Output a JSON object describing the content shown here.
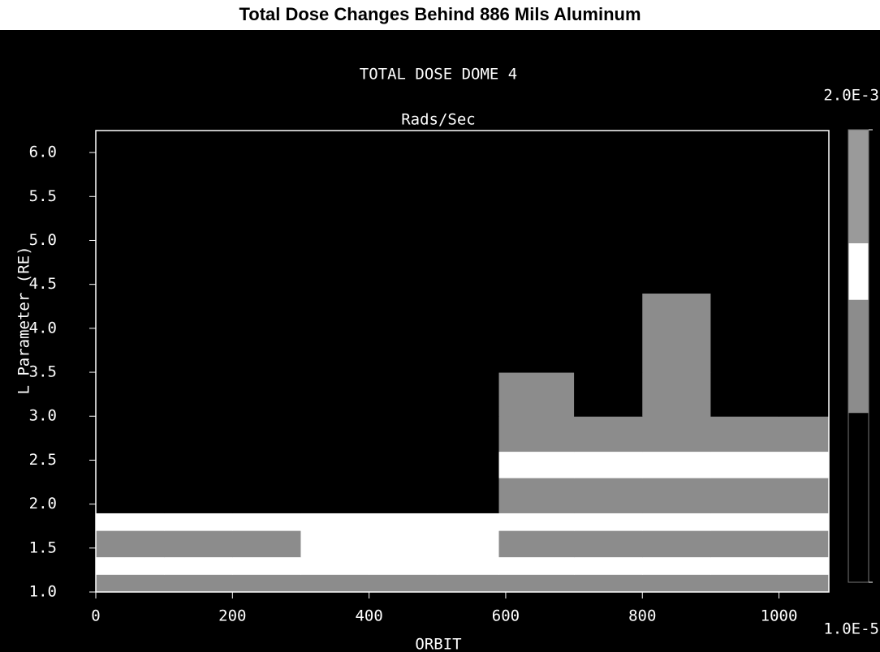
{
  "chart_data": {
    "type": "heatmap",
    "title": "Total Dose Changes Behind 886 Mils Aluminum",
    "subtitle": "TOTAL DOSE DOME 4",
    "colorbar_title": "Rads/Sec",
    "x_label": "ORBIT",
    "y_label": "L Parameter (RE)",
    "xlim": [
      0,
      1073
    ],
    "ylim": [
      1.0,
      6.25
    ],
    "xticks": [
      0,
      200,
      400,
      600,
      800,
      1000
    ],
    "yticks": [
      {
        "value": 1,
        "label": "1.0"
      },
      {
        "value": 1.5,
        "label": "1.5"
      },
      {
        "value": 2,
        "label": "2.0"
      },
      {
        "value": 2.5,
        "label": "2.5"
      },
      {
        "value": 3,
        "label": "3.0"
      },
      {
        "value": 3.5,
        "label": "3.5"
      },
      {
        "value": 4,
        "label": "4.0"
      },
      {
        "value": 4.5,
        "label": "4.5"
      },
      {
        "value": 5,
        "label": "5.0"
      },
      {
        "value": 5.5,
        "label": "5.5"
      },
      {
        "value": 6,
        "label": "6.0"
      }
    ],
    "x_bins": [
      0,
      100,
      200,
      300,
      400,
      500,
      590,
      700,
      800,
      900,
      1000,
      1073
    ],
    "y_bins": [
      1.0,
      1.2,
      1.4,
      1.7,
      1.9,
      2.3,
      2.6,
      3.0,
      3.5,
      4.4,
      5.0,
      6.25
    ],
    "z": [
      [
        0.00015,
        0.00015,
        0.00015,
        0.00015,
        0.00015,
        0.00015,
        0.00015,
        0.00015,
        0.00015,
        0.00015,
        0.00015
      ],
      [
        0.0004,
        0.0004,
        0.0004,
        0.0004,
        0.0004,
        0.0004,
        0.0004,
        0.0004,
        0.0004,
        0.0004,
        0.0004
      ],
      [
        0.00015,
        0.00015,
        0.00015,
        0.0004,
        0.0004,
        0.0004,
        0.00015,
        0.00015,
        0.00015,
        0.00015,
        0.00015
      ],
      [
        0.0004,
        0.0004,
        0.0004,
        0.0004,
        0.0004,
        0.0004,
        0.0004,
        0.0004,
        0.0004,
        0.0004,
        0.0004
      ],
      [
        3e-05,
        3e-05,
        3e-05,
        3e-05,
        3e-05,
        3e-05,
        0.00015,
        0.00015,
        0.00015,
        0.00015,
        0.00015
      ],
      [
        3e-05,
        3e-05,
        3e-05,
        3e-05,
        3e-05,
        3e-05,
        0.0004,
        0.0004,
        0.0004,
        0.0004,
        0.0004
      ],
      [
        3e-05,
        3e-05,
        3e-05,
        3e-05,
        3e-05,
        3e-05,
        0.00015,
        0.00015,
        0.00015,
        0.00015,
        0.00015
      ],
      [
        3e-05,
        3e-05,
        3e-05,
        3e-05,
        3e-05,
        3e-05,
        0.00015,
        3e-05,
        0.00015,
        3e-05,
        3e-05
      ],
      [
        3e-05,
        3e-05,
        3e-05,
        3e-05,
        3e-05,
        3e-05,
        3e-05,
        3e-05,
        0.00015,
        3e-05,
        3e-05
      ],
      [
        3e-05,
        3e-05,
        3e-05,
        3e-05,
        3e-05,
        3e-05,
        3e-05,
        3e-05,
        3e-05,
        3e-05,
        3e-05
      ],
      [
        3e-05,
        3e-05,
        3e-05,
        3e-05,
        3e-05,
        3e-05,
        3e-05,
        3e-05,
        3e-05,
        3e-05,
        3e-05
      ]
    ],
    "clim": [
      1e-05,
      0.002
    ],
    "log_color": true,
    "cticks": [
      {
        "value": 1e-05,
        "label": "1.0E-5"
      },
      {
        "value": 0.002,
        "label": "2.0E-3"
      }
    ],
    "colorscale": [
      "#000000",
      "#000000",
      "#000000",
      "#8c8c8c",
      "#8c8c8c",
      "#ffffff",
      "#9a9a9a",
      "#9a9a9a"
    ]
  }
}
